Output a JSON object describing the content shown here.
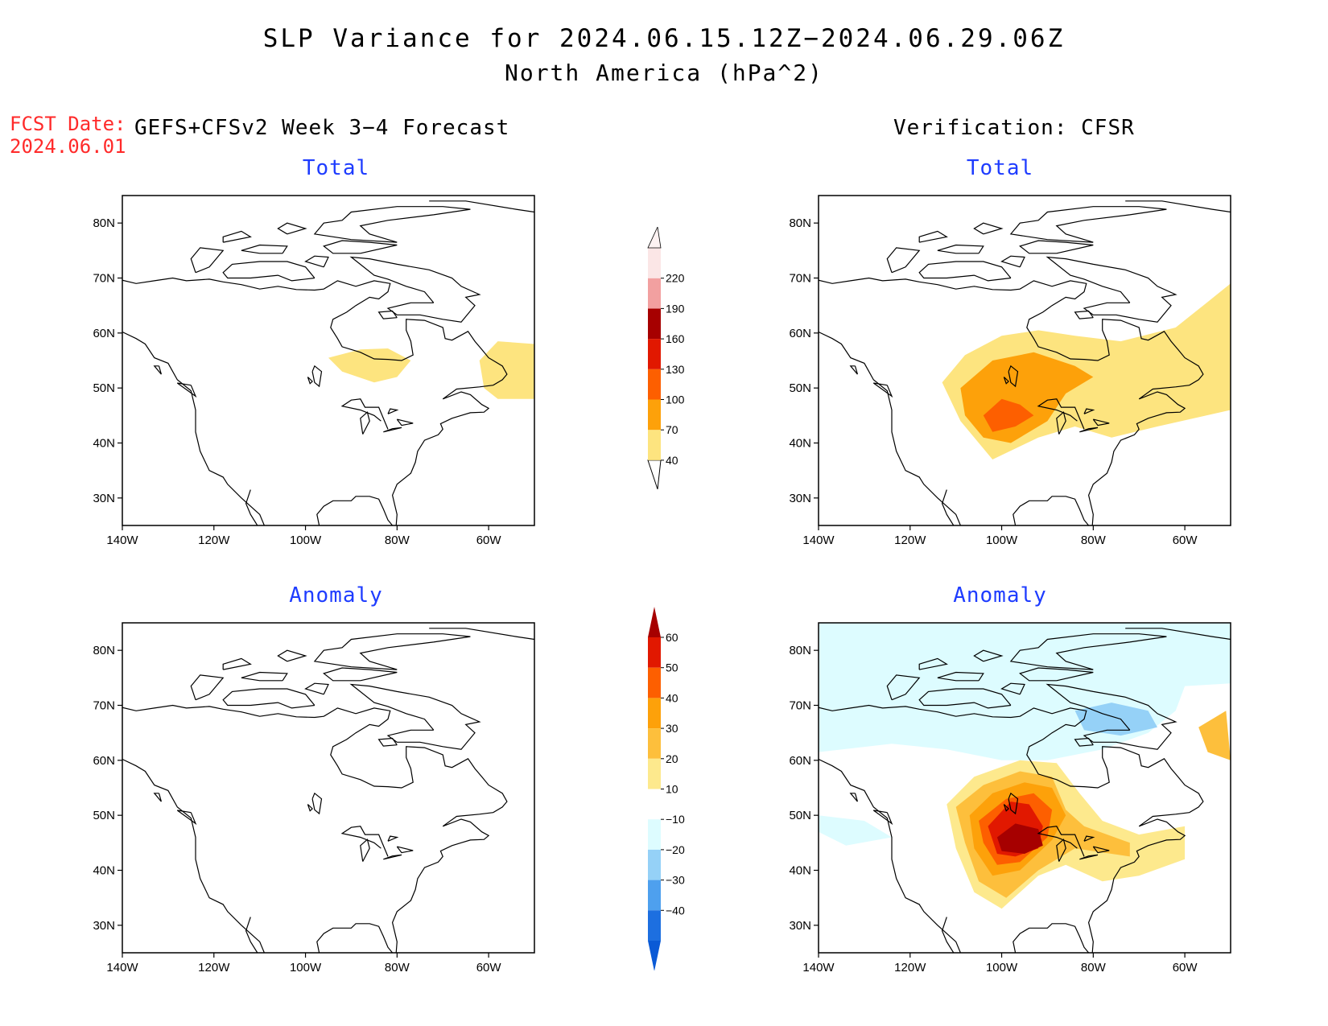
{
  "header": {
    "title": "SLP Variance for 2024.06.15.12Z−2024.06.29.06Z",
    "subtitle": "North America (hPa^2)",
    "fcst_label": "FCST Date:",
    "fcst_date": "2024.06.01",
    "left_column": "GEFS+CFSv2 Week 3−4 Forecast",
    "right_column": "Verification: CFSR"
  },
  "panels": {
    "tl": {
      "title": "Total"
    },
    "tr": {
      "title": "Total"
    },
    "bl": {
      "title": "Anomaly"
    },
    "br": {
      "title": "Anomaly"
    }
  },
  "axes": {
    "lat_labels": [
      "80N",
      "70N",
      "60N",
      "50N",
      "40N",
      "30N"
    ],
    "lon_labels": [
      "140W",
      "120W",
      "100W",
      "80W",
      "60W"
    ],
    "lat_values": [
      80,
      70,
      60,
      50,
      40,
      30
    ],
    "lon_values": [
      -140,
      -120,
      -100,
      -80,
      -60
    ]
  },
  "colorbars": {
    "total": {
      "labels": [
        "40",
        "70",
        "100",
        "130",
        "160",
        "190",
        "220"
      ],
      "colors": [
        "#fde47f",
        "#fda10a",
        "#fd5f00",
        "#e11800",
        "#a60000",
        "#f2a0a0",
        "#fbe6e6"
      ]
    },
    "anomaly": {
      "labels": [
        "60",
        "50",
        "40",
        "30",
        "20",
        "10",
        "−10",
        "−20",
        "−30",
        "−40"
      ],
      "colors_top_down": [
        "#a60000",
        "#e11800",
        "#fd5f00",
        "#fda10a",
        "#fdbf3c",
        "#fde98d",
        "#ffffff",
        "#ddfcff",
        "#95d1f7",
        "#4ea0ee",
        "#1d6fe0",
        "#0a5ad6"
      ]
    }
  },
  "colors": {
    "title_blue": "#1e3cff",
    "fcst_red": "#ff2a2a"
  }
}
